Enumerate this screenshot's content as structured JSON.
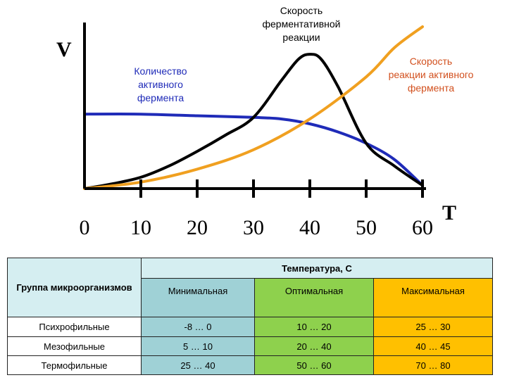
{
  "chart_data": {
    "type": "line",
    "title": "",
    "xlabel": "T",
    "ylabel": "V",
    "xlim": [
      0,
      60
    ],
    "ylim": [
      0,
      100
    ],
    "x_ticks": [
      0,
      10,
      20,
      30,
      40,
      50,
      60
    ],
    "x_tick_labels": [
      "0",
      "10",
      "20",
      "30",
      "40",
      "50",
      "60"
    ],
    "grid": false,
    "series": [
      {
        "name": "Количество активного фермента",
        "color": "#1f2bb8",
        "x": [
          0,
          10,
          20,
          30,
          35,
          40,
          45,
          50,
          55,
          60
        ],
        "y": [
          46,
          46,
          45,
          44,
          43,
          40,
          35,
          28,
          18,
          2
        ]
      },
      {
        "name": "Скорость ферментативной реакции",
        "color": "#000000",
        "x": [
          0,
          5,
          10,
          15,
          20,
          25,
          30,
          35,
          38,
          40,
          42,
          45,
          50,
          55,
          60
        ],
        "y": [
          0,
          3,
          7,
          14,
          23,
          33,
          44,
          67,
          80,
          83,
          80,
          63,
          28,
          14,
          2
        ]
      },
      {
        "name": "Скорость реакции активного фермента",
        "color": "#f0a020",
        "x": [
          0,
          10,
          20,
          30,
          40,
          50,
          55,
          60
        ],
        "y": [
          0,
          4,
          12,
          24,
          43,
          69,
          87,
          100
        ]
      }
    ],
    "annotations": [
      {
        "text_lines": [
          "Скорость",
          "ферментативной",
          "реакции"
        ],
        "color": "#000000"
      },
      {
        "text_lines": [
          "Количество",
          "активного",
          "фермента"
        ],
        "color": "#1f2bb8"
      },
      {
        "text_lines": [
          "Скорость",
          "реакции активного",
          "фермента"
        ],
        "color": "#d2501e"
      }
    ]
  },
  "table": {
    "group_header": "Группа микроорганизмов",
    "temp_header": "Температура, С",
    "columns": [
      "Минимальная",
      "Оптимальная",
      "Максимальная"
    ],
    "rows": [
      {
        "name": "Психрофильные",
        "min": "-8 … 0",
        "opt": "10 … 20",
        "max": "25 … 30"
      },
      {
        "name": "Мезофильные",
        "min": "5 … 10",
        "opt": "20 … 40",
        "max": "40 … 45"
      },
      {
        "name": "Термофильные",
        "min": "25 … 40",
        "opt": "50 … 60",
        "max": "70 … 80"
      }
    ]
  }
}
